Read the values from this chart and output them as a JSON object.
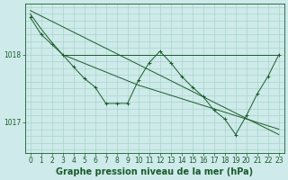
{
  "background_color": "#ceeaea",
  "grid_color": "#a8d5c8",
  "line_color": "#1a5c2a",
  "title": "Graphe pression niveau de la mer (hPa)",
  "ylabel_ticks": [
    1017,
    1018
  ],
  "xlim": [
    -0.5,
    23.5
  ],
  "ylim": [
    1016.55,
    1018.75
  ],
  "series_straight": {
    "x": [
      0,
      23
    ],
    "y": [
      1018.65,
      1016.82
    ]
  },
  "series_flat": {
    "x": [
      3,
      23
    ],
    "y": [
      1018.0,
      1018.0
    ]
  },
  "series_jagged": {
    "x": [
      0,
      1,
      2,
      3,
      4,
      5,
      6,
      7,
      8,
      9,
      10,
      11,
      12,
      13,
      14,
      15,
      16,
      17,
      18,
      19,
      20,
      21,
      22,
      23
    ],
    "y": [
      1018.55,
      1018.3,
      1018.15,
      1018.0,
      1017.82,
      1017.65,
      1017.52,
      1017.28,
      1017.28,
      1017.28,
      1017.62,
      1017.88,
      1018.05,
      1017.88,
      1017.68,
      1017.52,
      1017.38,
      1017.18,
      1017.05,
      1016.82,
      1017.1,
      1017.42,
      1017.68,
      1018.0
    ]
  },
  "series_second": {
    "x": [
      0,
      1,
      2,
      3,
      10,
      23
    ],
    "y": [
      1018.6,
      1018.38,
      1018.18,
      1018.0,
      1017.55,
      1016.9
    ]
  },
  "xtick_labels": [
    "0",
    "1",
    "2",
    "3",
    "4",
    "5",
    "6",
    "7",
    "8",
    "9",
    "10",
    "11",
    "12",
    "13",
    "14",
    "15",
    "16",
    "17",
    "18",
    "19",
    "20",
    "21",
    "22",
    "23"
  ],
  "title_fontsize": 7,
  "tick_fontsize": 5.5
}
